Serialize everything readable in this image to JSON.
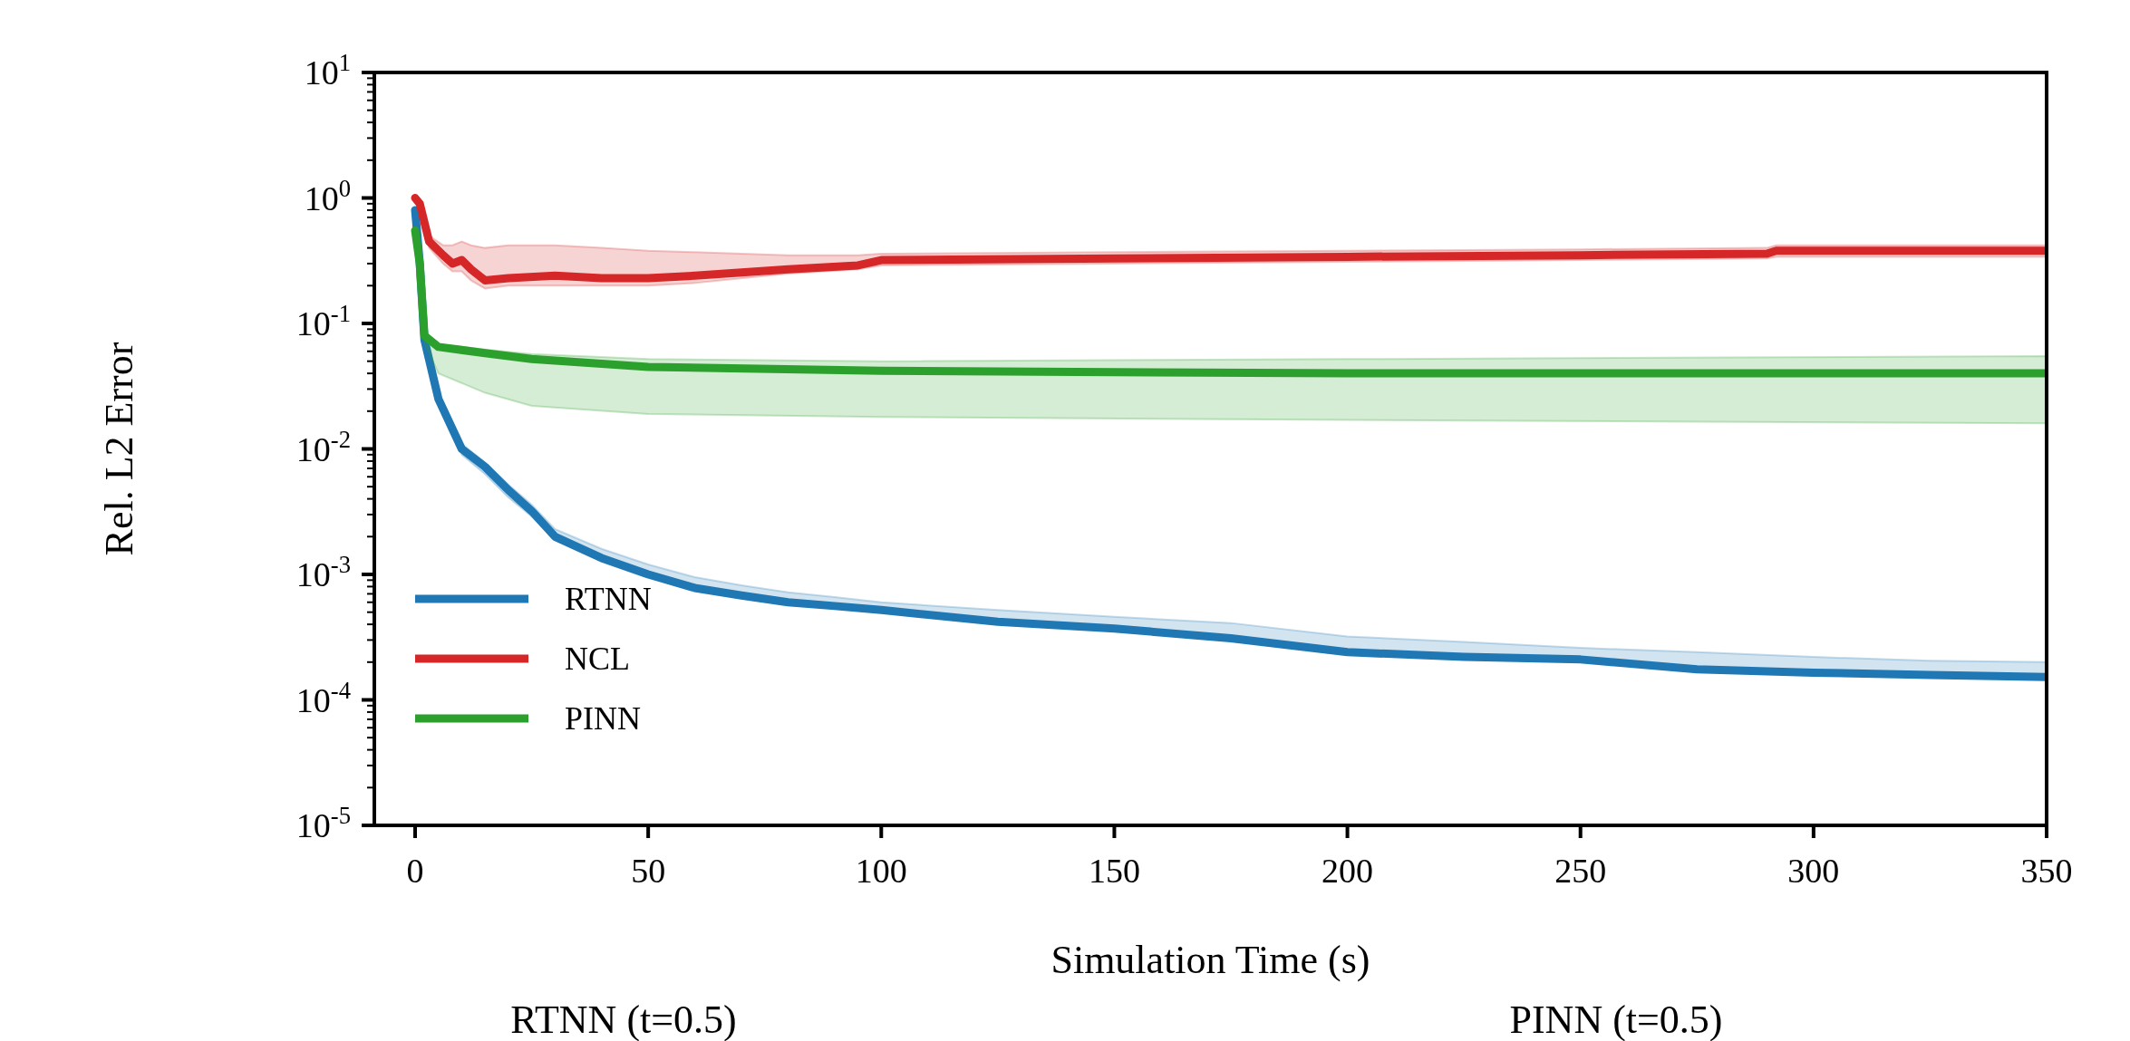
{
  "chart_data": {
    "type": "line",
    "xlabel": "Simulation Time (s)",
    "ylabel": "Rel. L2 Error",
    "log": "y",
    "legend": "bottom left",
    "grid": false,
    "xlim": [
      -8.75,
      350
    ],
    "xticks": [
      0,
      50,
      100,
      150,
      200,
      250,
      300,
      350
    ],
    "ylim": [
      1e-05,
      10
    ],
    "yticks": [
      {
        "value": 1e-05,
        "label": "10$^{-5}$"
      },
      {
        "value": 2e-05,
        "label": null
      },
      {
        "value": 3e-05,
        "label": null
      },
      {
        "value": 4e-05,
        "label": null
      },
      {
        "value": 5e-05,
        "label": null
      },
      {
        "value": 6e-05,
        "label": null
      },
      {
        "value": 7e-05,
        "label": null
      },
      {
        "value": 8e-05,
        "label": null
      },
      {
        "value": 9e-05,
        "label": null
      },
      {
        "value": 0.0001,
        "label": "10$^{-4}$"
      },
      {
        "value": 0.0002,
        "label": null
      },
      {
        "value": 0.0003,
        "label": null
      },
      {
        "value": 0.0004,
        "label": null
      },
      {
        "value": 0.0005,
        "label": null
      },
      {
        "value": 0.0006,
        "label": null
      },
      {
        "value": 0.0007,
        "label": null
      },
      {
        "value": 0.0008,
        "label": null
      },
      {
        "value": 0.0009,
        "label": null
      },
      {
        "value": 0.001,
        "label": "10$^{-3}$"
      },
      {
        "value": 0.002,
        "label": null
      },
      {
        "value": 0.003,
        "label": null
      },
      {
        "value": 0.004,
        "label": null
      },
      {
        "value": 0.005,
        "label": null
      },
      {
        "value": 0.006,
        "label": null
      },
      {
        "value": 0.007,
        "label": null
      },
      {
        "value": 0.008,
        "label": null
      },
      {
        "value": 0.009,
        "label": null
      },
      {
        "value": 0.01,
        "label": "10$^{-2}$"
      },
      {
        "value": 0.02,
        "label": null
      },
      {
        "value": 0.03,
        "label": null
      },
      {
        "value": 0.04,
        "label": null
      },
      {
        "value": 0.05,
        "label": null
      },
      {
        "value": 0.06,
        "label": null
      },
      {
        "value": 0.07,
        "label": null
      },
      {
        "value": 0.08,
        "label": null
      },
      {
        "value": 0.09,
        "label": null
      },
      {
        "value": 0.1,
        "label": "10$^{-1}$"
      },
      {
        "value": 0.2,
        "label": null
      },
      {
        "value": 0.3,
        "label": null
      },
      {
        "value": 0.4,
        "label": null
      },
      {
        "value": 0.5,
        "label": null
      },
      {
        "value": 0.6,
        "label": null
      },
      {
        "value": 0.7,
        "label": null
      },
      {
        "value": 0.8,
        "label": null
      },
      {
        "value": 0.9,
        "label": null
      },
      {
        "value": 1,
        "label": "10$^{0}$"
      },
      {
        "value": 2,
        "label": null
      },
      {
        "value": 3,
        "label": null
      },
      {
        "value": 4,
        "label": null
      },
      {
        "value": 5,
        "label": null
      },
      {
        "value": 6,
        "label": null
      },
      {
        "value": 7,
        "label": null
      },
      {
        "value": 8,
        "label": null
      },
      {
        "value": 9,
        "label": null
      },
      {
        "value": 10,
        "label": "10$^{1}$"
      }
    ],
    "series": [
      {
        "name": "RTNN",
        "color": "#1f77b4",
        "x": [
          0,
          1,
          2,
          5,
          10,
          15,
          20,
          25,
          30,
          40,
          50,
          60,
          70,
          80,
          90,
          100,
          125,
          150,
          175,
          200,
          225,
          250,
          275,
          300,
          325,
          350
        ],
        "values": [
          0.8,
          0.3,
          0.074,
          0.025,
          0.01,
          0.0072,
          0.0047,
          0.0032,
          0.002,
          0.00135,
          0.001,
          0.00078,
          0.00068,
          0.0006,
          0.00056,
          0.00052,
          0.00042,
          0.00037,
          0.00031,
          0.00024,
          0.00022,
          0.00021,
          0.000175,
          0.000165,
          0.000158,
          0.000152
        ],
        "lower": [
          0.8,
          0.3,
          0.07,
          0.023,
          0.009,
          0.0063,
          0.0041,
          0.0029,
          0.0019,
          0.0013,
          0.00097,
          0.00077,
          0.00067,
          0.0006,
          0.00055,
          0.0005,
          0.00041,
          0.00036,
          0.0003,
          0.00024,
          0.00022,
          0.00021,
          0.000175,
          0.000165,
          0.000158,
          0.000152
        ],
        "upper": [
          0.8,
          0.32,
          0.08,
          0.027,
          0.011,
          0.0078,
          0.0052,
          0.0036,
          0.0023,
          0.0016,
          0.0012,
          0.00095,
          0.00082,
          0.00072,
          0.00066,
          0.0006,
          0.00052,
          0.00046,
          0.00041,
          0.00032,
          0.00029,
          0.00026,
          0.00024,
          0.00022,
          0.000205,
          0.0002
        ]
      },
      {
        "name": "NCL",
        "color": "#d62728",
        "x": [
          0,
          1,
          3,
          6,
          8,
          10,
          12,
          15,
          20,
          30,
          40,
          50,
          60,
          80,
          95,
          100,
          150,
          200,
          250,
          290,
          292,
          350
        ],
        "values": [
          1,
          0.9,
          0.45,
          0.35,
          0.3,
          0.32,
          0.27,
          0.22,
          0.23,
          0.24,
          0.23,
          0.23,
          0.24,
          0.27,
          0.29,
          0.32,
          0.33,
          0.34,
          0.35,
          0.36,
          0.38,
          0.38
        ],
        "lower": [
          1,
          0.85,
          0.4,
          0.3,
          0.26,
          0.26,
          0.22,
          0.19,
          0.2,
          0.2,
          0.2,
          0.2,
          0.21,
          0.25,
          0.27,
          0.29,
          0.3,
          0.31,
          0.32,
          0.33,
          0.34,
          0.34
        ],
        "upper": [
          1,
          0.95,
          0.5,
          0.42,
          0.42,
          0.45,
          0.42,
          0.4,
          0.42,
          0.42,
          0.4,
          0.38,
          0.37,
          0.35,
          0.35,
          0.36,
          0.37,
          0.38,
          0.39,
          0.4,
          0.42,
          0.42
        ]
      },
      {
        "name": "PINN",
        "color": "#2ca02c",
        "x": [
          0,
          1,
          2,
          5,
          15,
          25,
          50,
          100,
          200,
          350
        ],
        "values": [
          0.55,
          0.3,
          0.08,
          0.065,
          0.058,
          0.052,
          0.045,
          0.042,
          0.04,
          0.04
        ],
        "lower": [
          0.55,
          0.25,
          0.07,
          0.04,
          0.028,
          0.022,
          0.019,
          0.018,
          0.017,
          0.016
        ],
        "upper": [
          0.55,
          0.32,
          0.085,
          0.068,
          0.062,
          0.057,
          0.052,
          0.05,
          0.052,
          0.055
        ]
      }
    ],
    "annotations": [
      "RTNN (t=0.5)",
      "PINN (t=0.5)"
    ]
  }
}
